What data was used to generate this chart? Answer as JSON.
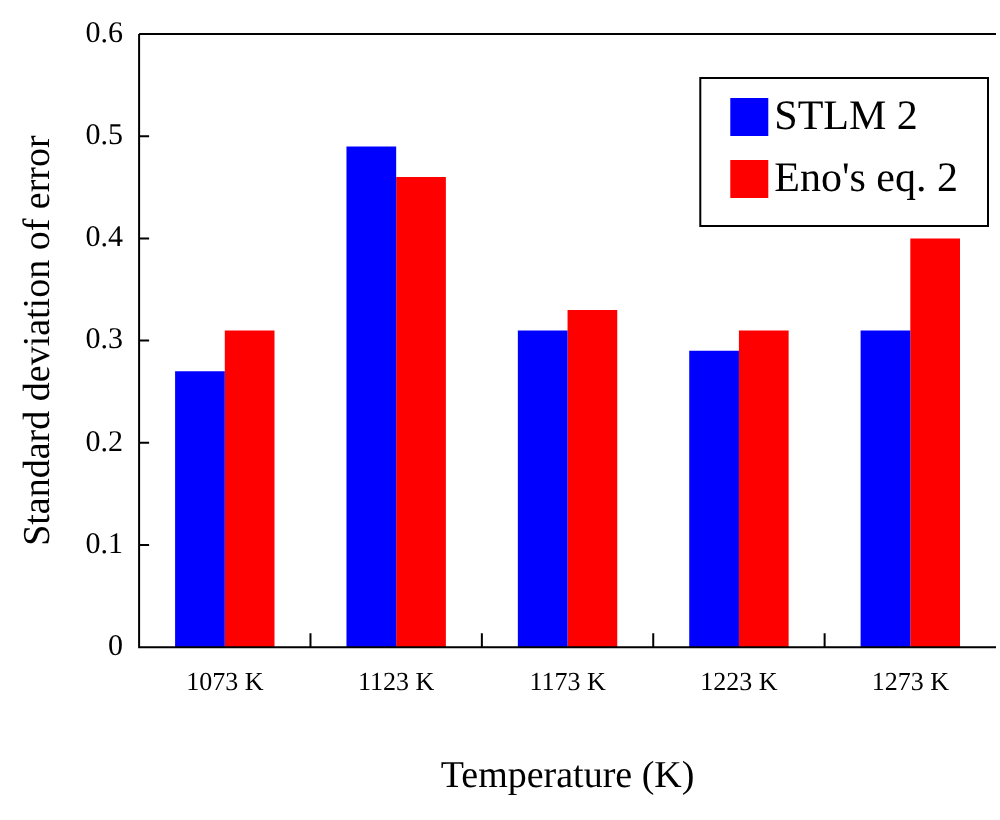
{
  "chart_data": {
    "type": "bar",
    "xlabel": "Temperature (K)",
    "ylabel": "Standard deviation of error",
    "categories": [
      "1073 K",
      "1123 K",
      "1173 K",
      "1223 K",
      "1273 K"
    ],
    "series": [
      {
        "name": "STLM 2",
        "color": "#0000ff",
        "values": [
          0.27,
          0.49,
          0.31,
          0.29,
          0.31
        ]
      },
      {
        "name": "Eno's eq. 2",
        "color": "#ff0000",
        "values": [
          0.31,
          0.46,
          0.33,
          0.31,
          0.4
        ]
      }
    ],
    "ylim": [
      0,
      0.6
    ],
    "yticks": [
      0,
      0.1,
      0.2,
      0.3,
      0.4,
      0.5,
      0.6
    ],
    "grid": false,
    "legend": "top right"
  }
}
